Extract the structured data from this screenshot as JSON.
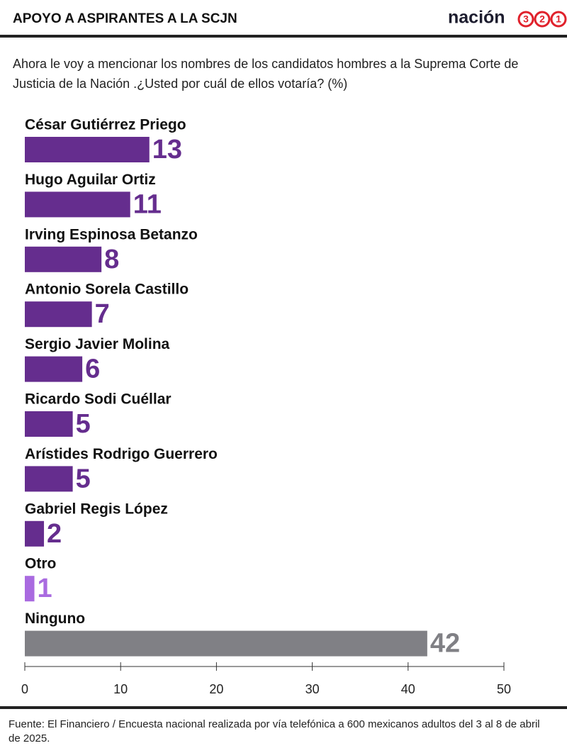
{
  "header": {
    "title": "APOYO A ASPIRANTES A LA SCJN",
    "logo": {
      "text": "nación",
      "digits": [
        "3",
        "2",
        "1"
      ]
    }
  },
  "chart_data": {
    "type": "bar",
    "orientation": "horizontal",
    "subtitle": "Ahora le voy a mencionar los nombres de los candidatos hombres a la Suprema Corte de Justicia de la Nación .¿Usted por cuál de ellos votaría? (%)",
    "categories": [
      "César Gutiérrez Priego",
      "Hugo Aguilar Ortiz",
      "Irving Espinosa Betanzo",
      "Antonio Sorela Castillo",
      "Sergio Javier Molina",
      "Ricardo Sodi Cuéllar",
      "Arístides Rodrigo Guerrero",
      "Gabriel Regis López",
      "Otro",
      "Ninguno"
    ],
    "values": [
      13,
      11,
      8,
      7,
      6,
      5,
      5,
      2,
      1,
      42
    ],
    "colors": [
      "#652d8e",
      "#652d8e",
      "#652d8e",
      "#652d8e",
      "#652d8e",
      "#652d8e",
      "#652d8e",
      "#652d8e",
      "#a96ae0",
      "#808085"
    ],
    "xlim": [
      0,
      50
    ],
    "xticks": [
      0,
      10,
      20,
      30,
      40,
      50
    ]
  },
  "footer": {
    "source": "Fuente: El Financiero / Encuesta nacional realizada por vía telefónica a 600 mexicanos adultos del 3 al 8 de abril de 2025."
  }
}
